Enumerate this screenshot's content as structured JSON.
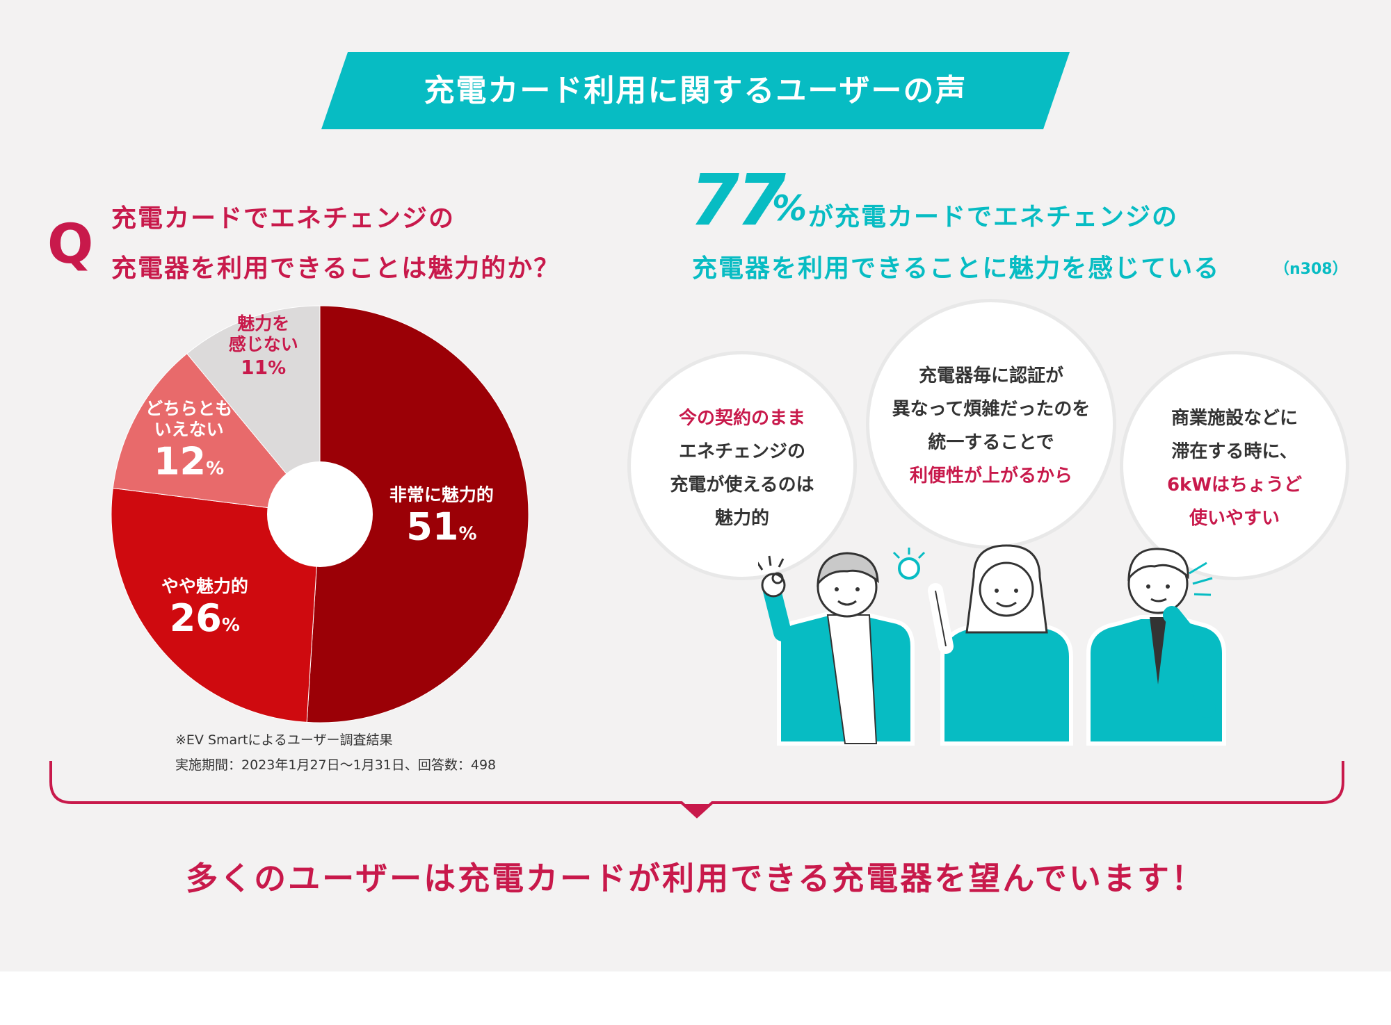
{
  "banner": {
    "title": "充電カード利用に関するユーザーの声"
  },
  "question": {
    "mark": "Q",
    "line1": "充電カードでエネチェンジの",
    "line2": "充電器を利用できることは魅力的か？"
  },
  "result": {
    "big_number": "77",
    "big_unit": "%",
    "line1": "が充電カードでエネチェンジの",
    "line2": "充電器を利用できることに魅力を感じている",
    "sample": "（n308）"
  },
  "chart_data": {
    "type": "pie",
    "donut": true,
    "categories": [
      "非常に魅力的",
      "やや魅力的",
      "どちらともいえない",
      "魅力を感じない"
    ],
    "values": [
      51,
      26,
      12,
      11
    ],
    "unit": "%",
    "colors": [
      "#9b0006",
      "#cf0a0f",
      "#e86a6b",
      "#dcdada"
    ],
    "label_colors": [
      "#ffffff",
      "#ffffff",
      "#ffffff",
      "#c8194b"
    ],
    "label_lines": [
      [
        "非常に魅力的"
      ],
      [
        "やや魅力的"
      ],
      [
        "どちらとも",
        "いえない"
      ],
      [
        "魅力を",
        "感じない"
      ]
    ],
    "value_labels": [
      "51",
      "26",
      "12",
      "11"
    ],
    "start": "top",
    "direction": "clockwise"
  },
  "survey_note": {
    "line1": "※EV Smartによるユーザー調査結果",
    "line2": "実施期間：2023年1月27日〜1月31日、回答数：498"
  },
  "bubbles": [
    {
      "lines": [
        {
          "text": "今の契約のまま",
          "color": "pink"
        },
        {
          "text": "エネチェンジの",
          "color": "dark"
        },
        {
          "text": "充電が使えるのは",
          "color": "dark"
        },
        {
          "text": "魅力的",
          "color": "dark"
        }
      ]
    },
    {
      "lines": [
        {
          "text": "充電器毎に認証が",
          "color": "dark"
        },
        {
          "text": "異なって煩雑だったのを",
          "color": "dark"
        },
        {
          "text": "統一することで",
          "color": "dark"
        },
        {
          "text": "利便性が上がるから",
          "color": "pink"
        }
      ]
    },
    {
      "lines": [
        {
          "text": "商業施設などに",
          "color": "dark"
        },
        {
          "text": "滞在する時に、",
          "color": "dark"
        },
        {
          "text": "6kWはちょうど",
          "color": "pink"
        },
        {
          "text": "使いやすい",
          "color": "pink"
        }
      ]
    }
  ],
  "conclusion": "多くのユーザーは充電カードが利用できる充電器を望んでいます！",
  "colors": {
    "teal": "#07bcc3",
    "crimson": "#c8194b",
    "panel": "#f3f2f2"
  }
}
